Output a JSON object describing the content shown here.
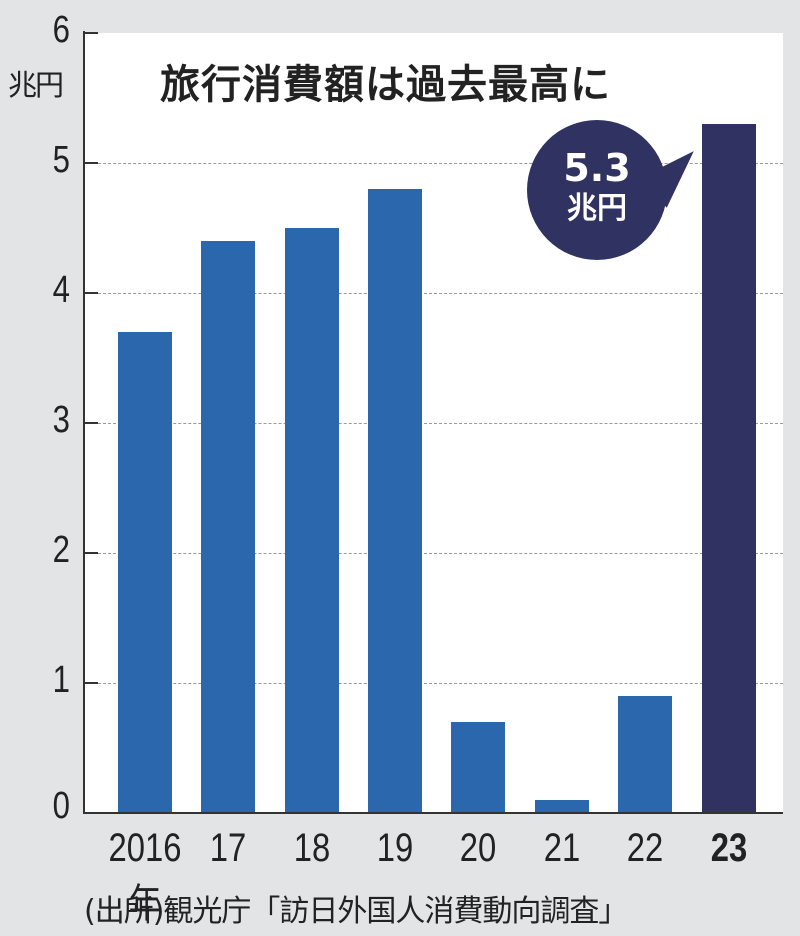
{
  "chart_data": {
    "type": "bar",
    "title": "旅行消費額は過去最高に",
    "xlabel": "",
    "ylabel": "兆円",
    "ylim": [
      0,
      6
    ],
    "yticks": [
      "0",
      "1",
      "2",
      "3",
      "4",
      "5",
      "6"
    ],
    "grid": "dashed horizontal",
    "categories": [
      "2016年",
      "17",
      "18",
      "19",
      "20",
      "21",
      "22",
      "23"
    ],
    "values": [
      3.7,
      4.4,
      4.5,
      4.8,
      0.7,
      0.1,
      0.9,
      5.3
    ],
    "highlight_index": 7,
    "colors": {
      "bar": "#2b67ad",
      "highlight": "#303262",
      "background": "#e3e4e6"
    },
    "annotation": {
      "value": "5.3",
      "unit": "兆円",
      "target": "23"
    },
    "source": "(出所)観光庁「訪日外国人消費動向調査」"
  }
}
